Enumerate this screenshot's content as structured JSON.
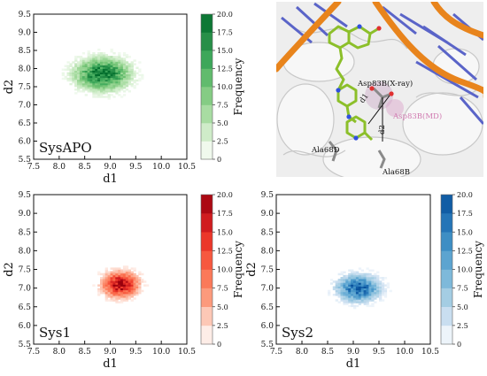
{
  "chart_data": [
    {
      "type": "heatmap",
      "label": "SysAPO",
      "xlabel": "d1",
      "ylabel": "d2",
      "xlim": [
        7.5,
        10.5
      ],
      "ylim": [
        5.5,
        9.5
      ],
      "xticks": [
        "7.5",
        "8.0",
        "8.5",
        "9.0",
        "9.5",
        "10.0",
        "10.5"
      ],
      "yticks": [
        "5.5",
        "6.0",
        "6.5",
        "7.0",
        "7.5",
        "8.0",
        "8.5",
        "9.0",
        "9.5"
      ],
      "density_center": [
        8.85,
        7.85
      ],
      "density_spread": [
        0.5,
        0.42
      ],
      "density_extent": {
        "x": [
          8.0,
          9.9
        ],
        "y": [
          7.0,
          8.6
        ]
      },
      "colormap": "Greens",
      "colorbar": {
        "label": "Frequency",
        "min": 0,
        "max": 20,
        "ticks": [
          "0",
          "2.5",
          "5.0",
          "7.5",
          "10.0",
          "12.5",
          "15.0",
          "17.5",
          "20.0"
        ]
      }
    },
    {
      "type": "heatmap",
      "label": "Sys1",
      "xlabel": "d1",
      "ylabel": "d2",
      "xlim": [
        7.5,
        10.5
      ],
      "ylim": [
        5.5,
        9.5
      ],
      "xticks": [
        "7.5",
        "8.0",
        "8.5",
        "9.0",
        "9.5",
        "10.0",
        "10.5"
      ],
      "yticks": [
        "5.5",
        "6.0",
        "6.5",
        "7.0",
        "7.5",
        "8.0",
        "8.5",
        "9.0",
        "9.5"
      ],
      "density_center": [
        9.2,
        7.1
      ],
      "density_spread": [
        0.33,
        0.32
      ],
      "density_extent": {
        "x": [
          8.6,
          10.0
        ],
        "y": [
          6.3,
          7.9
        ]
      },
      "colormap": "Reds",
      "colorbar": {
        "label": "Frequency",
        "min": 0,
        "max": 20,
        "ticks": [
          "0",
          "2.5",
          "5.0",
          "7.5",
          "10.0",
          "12.5",
          "15.0",
          "17.5",
          "20.0"
        ]
      }
    },
    {
      "type": "heatmap",
      "label": "Sys2",
      "xlabel": "d1",
      "ylabel": "d2",
      "xlim": [
        7.5,
        10.5
      ],
      "ylim": [
        5.5,
        9.5
      ],
      "xticks": [
        "7.5",
        "8.0",
        "8.5",
        "9.0",
        "9.5",
        "10.0",
        "10.5"
      ],
      "yticks": [
        "5.5",
        "6.0",
        "6.5",
        "7.0",
        "7.5",
        "8.0",
        "8.5",
        "9.0",
        "9.5"
      ],
      "density_center": [
        9.1,
        7.0
      ],
      "density_spread": [
        0.38,
        0.33
      ],
      "density_extent": {
        "x": [
          8.5,
          9.8
        ],
        "y": [
          6.3,
          7.7
        ]
      },
      "colormap": "Blues",
      "colorbar": {
        "label": "Frequency",
        "min": 0,
        "max": 20,
        "ticks": [
          "0",
          "2.5",
          "5.0",
          "7.5",
          "10.0",
          "12.5",
          "15.0",
          "17.5",
          "20.0"
        ]
      }
    }
  ],
  "structure_panel": {
    "labels": {
      "asp_xray": "Asp83B(X-ray)",
      "asp_md": "Asp83B(MD)",
      "d1": "d1",
      "d2": "d2",
      "ala68d": "Ala68D",
      "ala68b": "Ala68B"
    },
    "colors": {
      "dna_backbone": "#e8841c",
      "dna_base": "#5a64c8",
      "ligand": "#8cbf2a",
      "md_label": "#d07ab0",
      "background": "#eeeeee"
    }
  }
}
